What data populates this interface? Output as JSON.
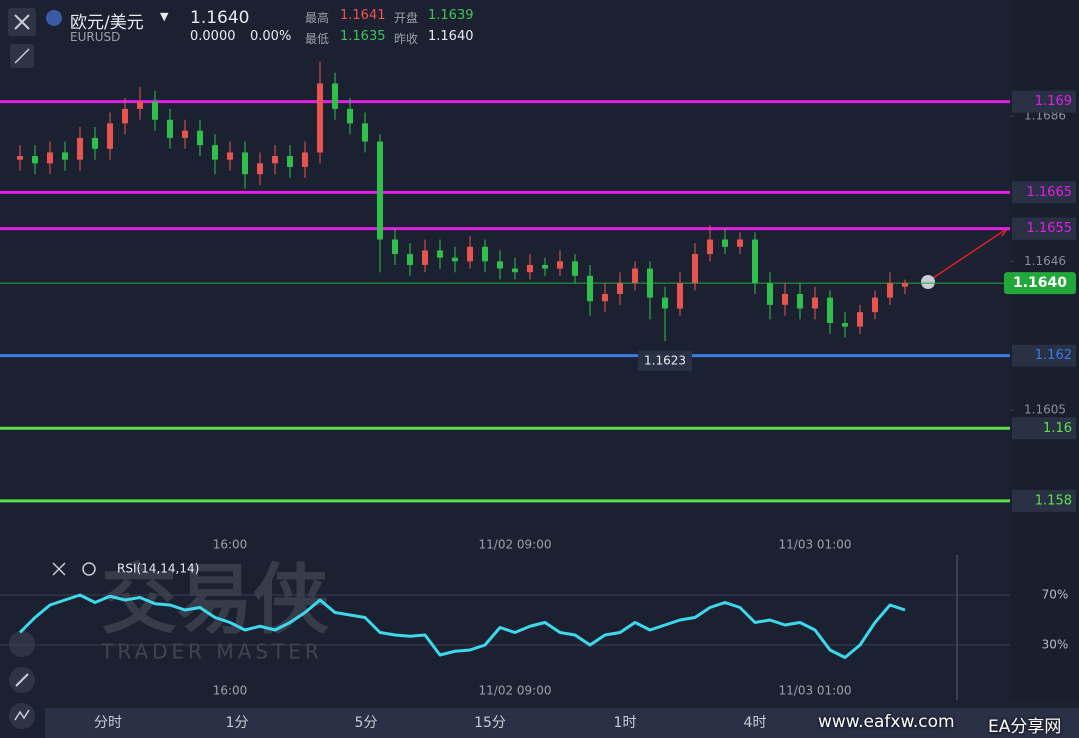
{
  "header": {
    "pair": "欧元/美元",
    "symbol": "EURUSD",
    "price": "1.1640",
    "change": "0.0000",
    "change_pct": "0.00%",
    "high_label": "最高",
    "high": "1.1641",
    "open_label": "开盘",
    "open": "1.1639",
    "low_label": "最低",
    "low": "1.1635",
    "prev_label": "昨收",
    "prev": "1.1640"
  },
  "watermark": {
    "brand": "交易侠",
    "sub": "TRADER MASTER"
  },
  "chart_data": [
    {
      "type": "candlestick",
      "categories": [
        null,
        null,
        null,
        null,
        null,
        null,
        null,
        null,
        null,
        null,
        null,
        null,
        null,
        null,
        "16:00",
        null,
        null,
        null,
        null,
        null,
        null,
        null,
        null,
        null,
        null,
        null,
        null,
        null,
        null,
        null,
        null,
        null,
        null,
        "11/02 09:00",
        null,
        null,
        null,
        null,
        null,
        null,
        null,
        null,
        null,
        null,
        null,
        null,
        null,
        null,
        null,
        null,
        null,
        null,
        null,
        "11/03 01:00",
        null,
        null,
        null,
        null,
        null,
        null
      ],
      "open": [
        1.1674,
        1.1675,
        1.1673,
        1.1676,
        1.1674,
        1.168,
        1.1677,
        1.1684,
        1.1688,
        1.169,
        1.1685,
        1.168,
        1.1682,
        1.1678,
        1.1674,
        1.1676,
        1.167,
        1.1673,
        1.1675,
        1.1672,
        1.1676,
        1.1695,
        1.1688,
        1.1684,
        1.1679,
        1.1652,
        1.1648,
        1.1645,
        1.1649,
        1.1647,
        1.1646,
        1.165,
        1.1646,
        1.1644,
        1.1643,
        1.1645,
        1.1644,
        1.1646,
        1.1642,
        1.1635,
        1.1637,
        1.164,
        1.1644,
        1.1636,
        1.1633,
        1.164,
        1.1648,
        1.1652,
        1.165,
        1.1652,
        1.164,
        1.1634,
        1.1637,
        1.1633,
        1.1636,
        1.1629,
        1.1628,
        1.1632,
        1.1636,
        1.1639
      ],
      "high": [
        1.1678,
        1.1678,
        1.1679,
        1.1679,
        1.1683,
        1.1683,
        1.1687,
        1.1691,
        1.1694,
        1.1693,
        1.1688,
        1.1685,
        1.1685,
        1.1681,
        1.1679,
        1.1679,
        1.1676,
        1.1678,
        1.1678,
        1.1679,
        1.1701,
        1.1698,
        1.1691,
        1.1687,
        1.1681,
        1.1655,
        1.1651,
        1.1652,
        1.1652,
        1.165,
        1.1653,
        1.1652,
        1.1649,
        1.1647,
        1.1648,
        1.1647,
        1.1649,
        1.1648,
        1.1645,
        1.164,
        1.1643,
        1.1646,
        1.1646,
        1.1639,
        1.1643,
        1.1651,
        1.1656,
        1.1655,
        1.1654,
        1.1654,
        1.1643,
        1.164,
        1.164,
        1.1639,
        1.1638,
        1.1632,
        1.1634,
        1.1638,
        1.1643,
        1.1641
      ],
      "low": [
        1.1671,
        1.167,
        1.167,
        1.1671,
        1.1671,
        1.1674,
        1.1674,
        1.1681,
        1.1685,
        1.1682,
        1.1677,
        1.1677,
        1.1675,
        1.167,
        1.1671,
        1.1666,
        1.1667,
        1.167,
        1.1669,
        1.1669,
        1.1673,
        1.1685,
        1.1681,
        1.1676,
        1.1643,
        1.1645,
        1.1642,
        1.1643,
        1.1644,
        1.1643,
        1.1644,
        1.1643,
        1.1641,
        1.1641,
        1.1641,
        1.1642,
        1.1642,
        1.164,
        1.1631,
        1.1632,
        1.1634,
        1.1638,
        1.163,
        1.1624,
        1.1631,
        1.1638,
        1.1646,
        1.1648,
        1.1648,
        1.1637,
        1.163,
        1.1631,
        1.163,
        1.163,
        1.1626,
        1.1625,
        1.1626,
        1.163,
        1.1634,
        1.1637
      ],
      "close": [
        1.1675,
        1.1673,
        1.1676,
        1.1674,
        1.168,
        1.1677,
        1.1684,
        1.1688,
        1.169,
        1.1685,
        1.168,
        1.1682,
        1.1678,
        1.1674,
        1.1676,
        1.167,
        1.1673,
        1.1675,
        1.1672,
        1.1676,
        1.1695,
        1.1688,
        1.1684,
        1.1679,
        1.1652,
        1.1648,
        1.1645,
        1.1649,
        1.1647,
        1.1646,
        1.165,
        1.1646,
        1.1644,
        1.1643,
        1.1645,
        1.1644,
        1.1646,
        1.1642,
        1.1635,
        1.1637,
        1.164,
        1.1644,
        1.1636,
        1.1633,
        1.164,
        1.1648,
        1.1652,
        1.165,
        1.1652,
        1.164,
        1.1634,
        1.1637,
        1.1633,
        1.1636,
        1.1629,
        1.1628,
        1.1632,
        1.1636,
        1.164,
        1.164
      ],
      "up_color": "#e8554e",
      "down_color": "#2fbf4a",
      "ylim": [
        1.1575,
        1.1718
      ],
      "yticks": [
        1.1686,
        1.1646,
        1.1605
      ],
      "levels": [
        {
          "value": 1.169,
          "color": "#e01ee6"
        },
        {
          "value": 1.1665,
          "color": "#e01ee6"
        },
        {
          "value": 1.1655,
          "color": "#e01ee6"
        },
        {
          "value": 1.162,
          "color": "#3a7ce8"
        },
        {
          "value": 1.16,
          "color": "#5fe04a"
        },
        {
          "value": 1.158,
          "color": "#5fe04a"
        }
      ],
      "last_price": {
        "value": 1.164,
        "label": "1.1640"
      },
      "last_color": "#22a83a",
      "low_marker": 1.1623
    },
    {
      "type": "line",
      "title": "RSI(14,14,14)",
      "color": "#3dd8ec",
      "values": [
        40,
        52,
        62,
        66,
        70,
        64,
        69,
        66,
        68,
        63,
        62,
        58,
        60,
        52,
        48,
        42,
        45,
        42,
        48,
        56,
        66,
        56,
        54,
        52,
        40,
        38,
        37,
        38,
        22,
        25,
        26,
        30,
        44,
        40,
        45,
        48,
        40,
        38,
        30,
        38,
        40,
        48,
        42,
        46,
        50,
        52,
        60,
        64,
        60,
        48,
        50,
        46,
        48,
        42,
        26,
        20,
        30,
        48,
        62,
        58
      ],
      "ylim": [
        0,
        100
      ],
      "yticks": [
        {
          "value": 70,
          "label": "70%"
        },
        {
          "value": 30,
          "label": "30%"
        }
      ]
    }
  ],
  "tabs": [
    "分时",
    "1分",
    "5分",
    "15分",
    "1时",
    "4时"
  ],
  "footer": {
    "site": "www.eafxw.com",
    "name": "EA分享网"
  }
}
